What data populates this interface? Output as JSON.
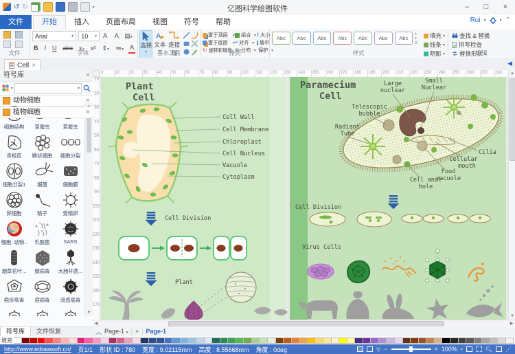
{
  "titlebar": {
    "title": "亿图科学绘图软件",
    "minimize": "–",
    "maximize": "□",
    "close": "×"
  },
  "menubar": {
    "tabs": [
      "文件",
      "开始",
      "插入",
      "页面布局",
      "视图",
      "符号",
      "帮助"
    ],
    "user": "Rui"
  },
  "ribbon": {
    "file": {
      "label": "文件"
    },
    "font": {
      "label": "字体",
      "family": "Arial",
      "size": "10",
      "bold": "B",
      "italic": "I",
      "underline": "U",
      "strike": "abc",
      "sub": "x₂",
      "sup": "x²",
      "color": "A"
    },
    "tools": {
      "label": "基本工具",
      "select": "选择",
      "text": "文本",
      "connector": "连接线"
    },
    "arrange": {
      "label": "排列",
      "front": "置于顶层",
      "back": "置于底层",
      "rotate": "旋转和镜像",
      "group": "组合",
      "align": "对齐",
      "distribute": "分布",
      "size": "大小",
      "center": "居中",
      "protect": "保护"
    },
    "style": {
      "label": "样式",
      "abc": "Abc",
      "fill": "填充",
      "line": "线条",
      "shadow": "阴影"
    },
    "edit": {
      "label": "编辑",
      "find": "查找 & 替换",
      "spell": "拼写检查",
      "replace": "替换形状"
    }
  },
  "doctabs": {
    "active": "Cell"
  },
  "sidebar": {
    "title": "符号库",
    "panel_top": "动物细胞",
    "panel_bottom": "植物细胞",
    "tab_library": "符号库",
    "tab_recovery": "文件恢复",
    "symbols": [
      {
        "label": "细胞结构",
        "icon": "cell-structure-icon"
      },
      {
        "label": "草履虫",
        "icon": "paramecium-icon"
      },
      {
        "label": "草履虫",
        "icon": "paramecium-icon"
      },
      {
        "label": "青蛙皮",
        "icon": "frog-skin-icon"
      },
      {
        "label": "鳞状细胞",
        "icon": "squamous-cell-icon"
      },
      {
        "label": "细胞分裂",
        "icon": "cell-chain-icon"
      },
      {
        "label": "细胞分裂1",
        "icon": "cell-division-icon"
      },
      {
        "label": "细菌",
        "icon": "bacteria-icon"
      },
      {
        "label": "细胞膜",
        "icon": "cell-membrane-icon"
      },
      {
        "label": "卵细胞",
        "icon": "egg-cell-icon"
      },
      {
        "label": "精子",
        "icon": "sperm-icon"
      },
      {
        "label": "受精卵",
        "icon": "fertilized-egg-icon"
      },
      {
        "label": "细胞, 动物...",
        "icon": "animal-cell-icon"
      },
      {
        "label": "乳酸菌",
        "icon": "lactobacillus-icon"
      },
      {
        "label": "SARS",
        "icon": "sars-icon"
      },
      {
        "label": "烟草花叶...",
        "icon": "tobacco-mosaic-icon"
      },
      {
        "label": "腺病毒",
        "icon": "adenovirus-icon"
      },
      {
        "label": "大肠杆菌...",
        "icon": "phage-icon"
      },
      {
        "label": "疱疹病毒",
        "icon": "herpes-icon"
      },
      {
        "label": "痘病毒",
        "icon": "pox-icon"
      },
      {
        "label": "流感病毒",
        "icon": "flu-icon"
      },
      {
        "label": "",
        "icon": "virus-icon"
      },
      {
        "label": "",
        "icon": "virus-icon"
      },
      {
        "label": "",
        "icon": "virus-icon"
      }
    ]
  },
  "canvas": {
    "ruler_h": [
      "0",
      "10",
      "20",
      "30",
      "40",
      "50",
      "60",
      "70",
      "80",
      "90",
      "100",
      "110",
      "120",
      "130",
      "140",
      "150",
      "160",
      "170",
      "180",
      "190",
      "200",
      "210",
      "220",
      "230",
      "240",
      "250",
      "260",
      "270",
      "280",
      "290"
    ],
    "ruler_v": [
      "10",
      "20",
      "30",
      "40",
      "50",
      "60",
      "70",
      "80",
      "90",
      "100",
      "110",
      "120",
      "130",
      "140",
      "150",
      "160",
      "170"
    ],
    "plant": {
      "title_1": "Plant",
      "title_2": "Cell",
      "label_wall": "Cell Wall",
      "label_membrane": "Cell Membrane",
      "label_chloroplast": "Chloroplast",
      "label_nucleus": "Cell Nucleus",
      "label_vacuole": "Vacuole",
      "label_cytoplasm": "Cytoplasm",
      "division": "Cell Division",
      "plant": "Plant"
    },
    "paramecium": {
      "title_1": "Paramecium",
      "title_2": "Cell",
      "large_1": "Large",
      "large_2": "nuclear",
      "small_1": "Small",
      "small_2": "Nuclear",
      "tele_1": "Telescopic",
      "tele_2": "bubble",
      "rad_1": "Radiant",
      "rad_2": "Tube",
      "cilia": "Cilia",
      "mouth_1": "Cellular",
      "mouth_2": "mouth",
      "food_1": "Food",
      "food_2": "vacuole",
      "anal_1": "Cell anal",
      "anal_2": "hole",
      "division": "Cell Division",
      "virus": "Virus Cells"
    }
  },
  "pagebar": {
    "collapse": "︿",
    "page_dropdown": "Page-1",
    "add": "+",
    "active_page": "Page-1"
  },
  "palette_label": "填充",
  "palette": [
    "#ffffff",
    "#7f0000",
    "#c00000",
    "#ff0000",
    "#ff4d4d",
    "#ff8080",
    "#ffb3b3",
    "#ffd9d9",
    "#e81f76",
    "#ff5fa2",
    "#ff99c2",
    "#ffd1e3",
    "#b03060",
    "#d4628c",
    "#eaa0bd",
    "#f8d7e4",
    "#1f3864",
    "#2e4d8f",
    "#2f5597",
    "#4472c4",
    "#5b9bd5",
    "#7fb2e5",
    "#9dc3e6",
    "#bdd7ee",
    "#deeaf6",
    "#1c6f5f",
    "#2e8b57",
    "#3aa655",
    "#55b954",
    "#70ad47",
    "#a9d18e",
    "#c5e0b4",
    "#e2efda",
    "#7f3f00",
    "#c55a11",
    "#ed7d31",
    "#f4a242",
    "#ffc000",
    "#ffd966",
    "#ffe699",
    "#fff2cc",
    "#ffff00",
    "#ffff99",
    "#4b2e83",
    "#7030a0",
    "#9966cc",
    "#b38fd1",
    "#cdb5e2",
    "#e5d5f0",
    "#5f3318",
    "#843c0c",
    "#a0522d",
    "#c08552",
    "#d9b38c",
    "#000000",
    "#262626",
    "#404040",
    "#595959",
    "#7f7f7f",
    "#a6a6a6",
    "#bfbfbf",
    "#d9d9d9",
    "#f2f2f2"
  ],
  "statusbar": {
    "url": "http://www.edrawsoft.cn/",
    "page": "页1/1",
    "shape": "形状 ID : 780",
    "width": "宽度 : 9.02115mm",
    "height": "高度 : 8.55668mm",
    "angle": "角度 : 0deg",
    "zoom": "100%"
  }
}
